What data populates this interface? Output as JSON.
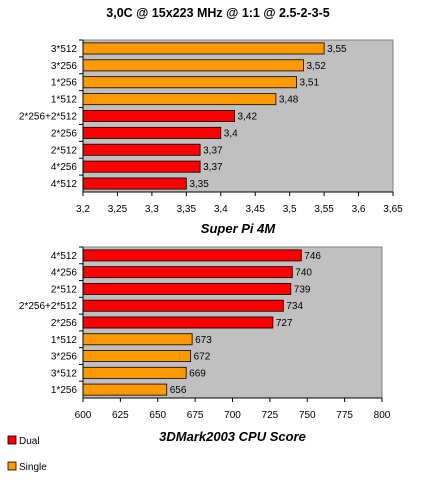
{
  "title": "3,0C @ 15x223 MHz @ 1:1 @ 2.5-2-3-5",
  "legend": [
    {
      "name": "Dual",
      "color": "#ff0000"
    },
    {
      "name": "Single",
      "color": "#ff9900"
    }
  ],
  "plot_bg_color": "#c0c0c0",
  "chart_data": [
    {
      "type": "bar",
      "orientation": "horizontal",
      "xlabel": "Super Pi 4M",
      "xlim": [
        3.2,
        3.65
      ],
      "xticks": [
        "3,2",
        "3,25",
        "3,3",
        "3,35",
        "3,4",
        "3,45",
        "3,5",
        "3,55",
        "3,6",
        "3,65"
      ],
      "grid": false,
      "categories": [
        "3*512",
        "3*256",
        "1*256",
        "1*512",
        "2*256+2*512",
        "2*256",
        "2*512",
        "4*256",
        "4*512"
      ],
      "values": [
        3.55,
        3.52,
        3.51,
        3.48,
        3.42,
        3.4,
        3.37,
        3.37,
        3.35
      ],
      "value_labels": [
        "3,55",
        "3,52",
        "3,51",
        "3,48",
        "3,42",
        "3,4",
        "3,37",
        "3,37",
        "3,35"
      ],
      "groups": [
        "Single",
        "Single",
        "Single",
        "Single",
        "Dual",
        "Dual",
        "Dual",
        "Dual",
        "Dual"
      ]
    },
    {
      "type": "bar",
      "orientation": "horizontal",
      "xlabel": "3DMark2003 CPU Score",
      "xlim": [
        600,
        800
      ],
      "xticks": [
        "600",
        "625",
        "650",
        "675",
        "700",
        "725",
        "750",
        "775",
        "800"
      ],
      "grid": false,
      "categories": [
        "4*512",
        "4*256",
        "2*512",
        "2*256+2*512",
        "2*256",
        "1*512",
        "3*256",
        "3*512",
        "1*256"
      ],
      "values": [
        746,
        740,
        739,
        734,
        727,
        673,
        672,
        669,
        656
      ],
      "value_labels": [
        "746",
        "740",
        "739",
        "734",
        "727",
        "673",
        "672",
        "669",
        "656"
      ],
      "groups": [
        "Dual",
        "Dual",
        "Dual",
        "Dual",
        "Dual",
        "Single",
        "Single",
        "Single",
        "Single"
      ]
    }
  ]
}
